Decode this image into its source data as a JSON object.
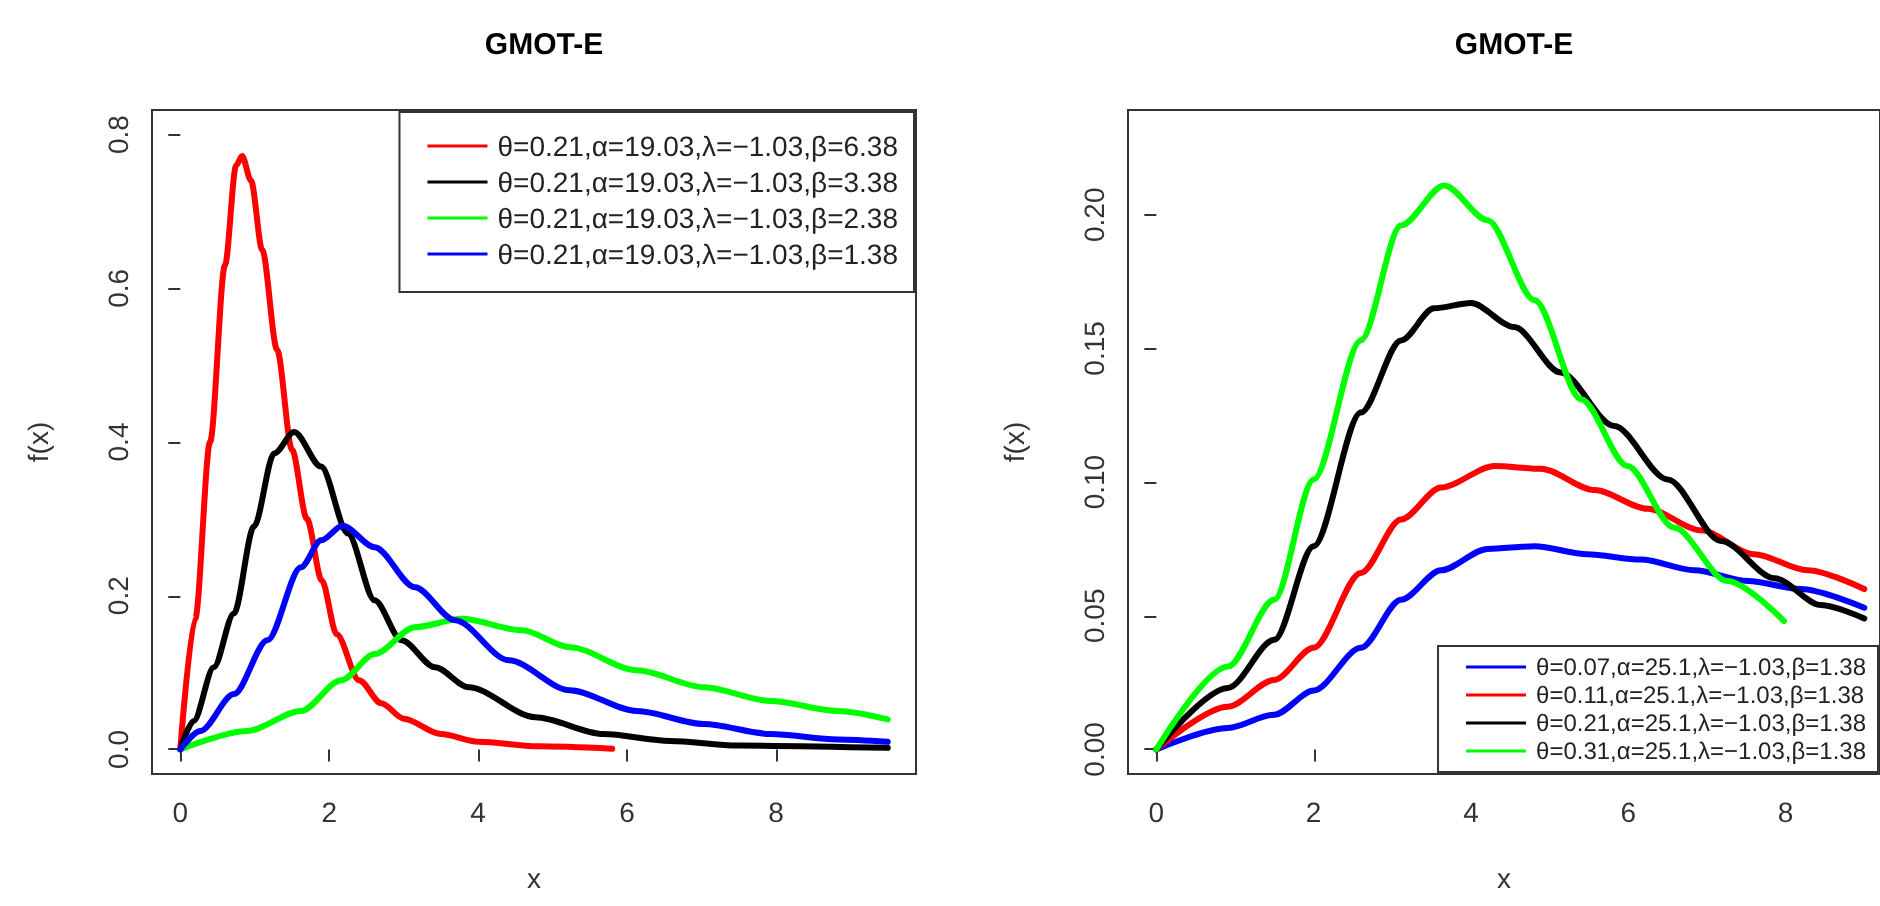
{
  "chart_data": [
    {
      "type": "line",
      "title": "GMOT-E",
      "xlabel": "x",
      "ylabel": "f(x)",
      "xlim": [
        -0.38,
        9.88
      ],
      "ylim": [
        -0.032,
        0.832
      ],
      "xticks": [
        0,
        2,
        4,
        6,
        8
      ],
      "yticks": [
        {
          "value": 0,
          "label": "0.0"
        },
        {
          "value": 0.2,
          "label": "0.2"
        },
        {
          "value": 0.4,
          "label": "0.4"
        },
        {
          "value": 0.6,
          "label": "0.6"
        },
        {
          "value": 0.8,
          "label": "0.8"
        }
      ],
      "grid": false,
      "legend": "top right",
      "marker": "none",
      "line_style": "solid",
      "series": [
        {
          "name": "θ=0.21,α=19.03,λ=−1.03,β=6.38",
          "color": "#ff0000",
          "x": [
            0,
            0.2,
            0.4,
            0.6,
            0.75,
            0.83,
            0.95,
            1.1,
            1.3,
            1.5,
            1.7,
            1.9,
            2.1,
            2.4,
            2.7,
            3.0,
            3.5,
            4.0,
            4.8,
            5.8
          ],
          "values": [
            0,
            0.17,
            0.4,
            0.63,
            0.76,
            0.772,
            0.74,
            0.65,
            0.52,
            0.39,
            0.3,
            0.22,
            0.15,
            0.09,
            0.06,
            0.04,
            0.02,
            0.01,
            0.004,
            0.001
          ]
        },
        {
          "name": "θ=0.21,α=19.03,λ=−1.03,β=3.38",
          "color": "#000000",
          "x": [
            0,
            0.18,
            0.45,
            0.72,
            0.99,
            1.26,
            1.53,
            1.89,
            2.25,
            2.61,
            2.97,
            3.42,
            3.87,
            4.77,
            5.68,
            6.58,
            7.48,
            9.5
          ],
          "values": [
            0,
            0.037,
            0.107,
            0.177,
            0.29,
            0.385,
            0.413,
            0.368,
            0.281,
            0.194,
            0.142,
            0.107,
            0.081,
            0.042,
            0.02,
            0.011,
            0.005,
            0.002
          ]
        },
        {
          "name": "θ=0.21,α=19.03,λ=−1.03,β=2.38",
          "color": "#00ff00",
          "x": [
            0,
            0.9,
            1.62,
            2.16,
            2.61,
            3.15,
            3.78,
            4.59,
            5.23,
            6.13,
            7.03,
            7.93,
            8.83,
            9.5
          ],
          "values": [
            0,
            0.024,
            0.05,
            0.09,
            0.124,
            0.159,
            0.17,
            0.155,
            0.133,
            0.103,
            0.081,
            0.063,
            0.05,
            0.039
          ]
        },
        {
          "name": "θ=0.21,α=19.03,λ=−1.03,β=1.38",
          "color": "#0000ff",
          "x": [
            0,
            0.27,
            0.72,
            1.17,
            1.62,
            1.89,
            2.18,
            2.61,
            3.15,
            3.69,
            4.41,
            5.23,
            6.13,
            7.03,
            7.93,
            8.83,
            9.5
          ],
          "values": [
            0,
            0.024,
            0.072,
            0.142,
            0.237,
            0.272,
            0.291,
            0.263,
            0.211,
            0.168,
            0.116,
            0.077,
            0.05,
            0.033,
            0.02,
            0.013,
            0.01
          ]
        }
      ]
    },
    {
      "type": "line",
      "title": "GMOT-E",
      "xlabel": "x",
      "ylabel": "f(x)",
      "xlim": [
        -0.36,
        9.2
      ],
      "ylim": [
        -0.0092,
        0.2392
      ],
      "xticks": [
        0,
        2,
        4,
        6,
        8
      ],
      "yticks": [
        {
          "value": 0,
          "label": "0.00"
        },
        {
          "value": 0.05,
          "label": "0.05"
        },
        {
          "value": 0.1,
          "label": "0.10"
        },
        {
          "value": 0.15,
          "label": "0.15"
        },
        {
          "value": 0.2,
          "label": "0.20"
        }
      ],
      "grid": false,
      "legend": "bottom right",
      "marker": "none",
      "line_style": "solid",
      "series": [
        {
          "name": "θ=0.07,α=25.1,λ=−1.03,β=1.38",
          "color": "#0000ff",
          "x": [
            0,
            0.91,
            1.5,
            2.0,
            2.6,
            3.11,
            3.62,
            4.21,
            4.81,
            5.48,
            6.16,
            6.84,
            7.52,
            8.19,
            9.0
          ],
          "values": [
            0,
            0.008,
            0.013,
            0.022,
            0.038,
            0.056,
            0.067,
            0.075,
            0.076,
            0.073,
            0.071,
            0.067,
            0.063,
            0.06,
            0.053
          ]
        },
        {
          "name": "θ=0.11,α=25.1,λ=−1.03,β=1.38",
          "color": "#ff0000",
          "x": [
            0,
            0.91,
            1.5,
            2.0,
            2.6,
            3.11,
            3.62,
            4.3,
            4.89,
            5.57,
            6.25,
            6.92,
            7.6,
            8.28,
            9.0
          ],
          "values": [
            0,
            0.016,
            0.026,
            0.038,
            0.066,
            0.086,
            0.098,
            0.106,
            0.105,
            0.097,
            0.09,
            0.082,
            0.073,
            0.067,
            0.06
          ]
        },
        {
          "name": "θ=0.21,α=25.1,λ=−1.03,β=1.38",
          "color": "#000000",
          "x": [
            0,
            0.91,
            1.5,
            2.0,
            2.6,
            3.11,
            3.53,
            4.0,
            4.55,
            5.14,
            5.82,
            6.5,
            7.18,
            7.86,
            8.45,
            9.0
          ],
          "values": [
            0,
            0.023,
            0.041,
            0.076,
            0.126,
            0.153,
            0.165,
            0.167,
            0.158,
            0.141,
            0.121,
            0.101,
            0.078,
            0.064,
            0.054,
            0.049
          ]
        },
        {
          "name": "θ=0.31,α=25.1,λ=−1.03,β=1.38",
          "color": "#00ff00",
          "x": [
            0,
            0.91,
            1.5,
            2.0,
            2.6,
            3.11,
            3.66,
            4.21,
            4.81,
            5.4,
            5.99,
            6.58,
            7.26,
            7.98
          ],
          "values": [
            0,
            0.031,
            0.056,
            0.101,
            0.153,
            0.196,
            0.211,
            0.198,
            0.168,
            0.131,
            0.106,
            0.083,
            0.063,
            0.048
          ]
        }
      ]
    }
  ]
}
